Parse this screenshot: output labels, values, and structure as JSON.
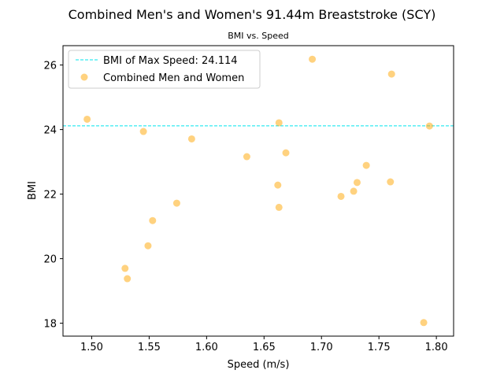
{
  "colors": {
    "points": "#FFA500",
    "reference_line": "#00E5EE",
    "axes": "#000000",
    "background": "#ffffff"
  },
  "chart_data": {
    "type": "scatter",
    "title": "Combined Men's and Women's 91.44m Breaststroke (SCY)",
    "subtitle": "BMI vs. Speed",
    "xlabel": "Speed (m/s)",
    "ylabel": "BMI",
    "xlim": [
      1.475,
      1.815
    ],
    "ylim": [
      17.6,
      26.6
    ],
    "xticks": [
      1.5,
      1.55,
      1.6,
      1.65,
      1.7,
      1.75,
      1.8
    ],
    "xtick_labels": [
      "1.50",
      "1.55",
      "1.60",
      "1.65",
      "1.70",
      "1.75",
      "1.80"
    ],
    "yticks": [
      18,
      20,
      22,
      24,
      26
    ],
    "ytick_labels": [
      "18",
      "20",
      "22",
      "24",
      "26"
    ],
    "grid": false,
    "legend_position": "top-left",
    "series": [
      {
        "name": "Combined Men and Women",
        "marker": "circle",
        "points": [
          {
            "x": 1.496,
            "y": 24.32
          },
          {
            "x": 1.529,
            "y": 19.7
          },
          {
            "x": 1.531,
            "y": 19.38
          },
          {
            "x": 1.545,
            "y": 23.94
          },
          {
            "x": 1.549,
            "y": 20.4
          },
          {
            "x": 1.553,
            "y": 21.18
          },
          {
            "x": 1.574,
            "y": 21.72
          },
          {
            "x": 1.587,
            "y": 23.71
          },
          {
            "x": 1.635,
            "y": 23.16
          },
          {
            "x": 1.662,
            "y": 22.28
          },
          {
            "x": 1.663,
            "y": 21.59
          },
          {
            "x": 1.663,
            "y": 24.21
          },
          {
            "x": 1.669,
            "y": 23.28
          },
          {
            "x": 1.692,
            "y": 26.18
          },
          {
            "x": 1.717,
            "y": 21.93
          },
          {
            "x": 1.728,
            "y": 22.09
          },
          {
            "x": 1.731,
            "y": 22.36
          },
          {
            "x": 1.739,
            "y": 22.89
          },
          {
            "x": 1.76,
            "y": 22.38
          },
          {
            "x": 1.761,
            "y": 25.72
          },
          {
            "x": 1.789,
            "y": 18.02
          },
          {
            "x": 1.794,
            "y": 24.11
          }
        ]
      }
    ],
    "reference_lines": [
      {
        "orientation": "horizontal",
        "y": 24.114,
        "style": "dashed",
        "label": "BMI of Max Speed: 24.114"
      }
    ]
  }
}
